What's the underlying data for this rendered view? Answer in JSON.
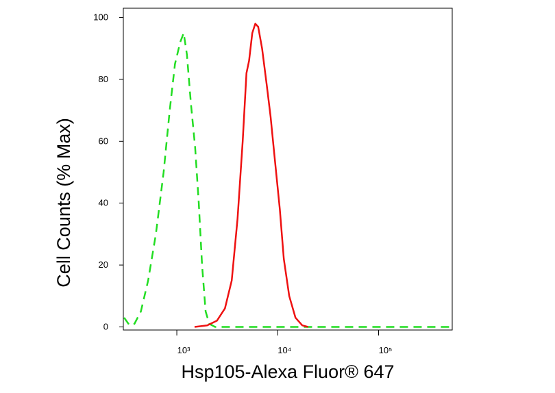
{
  "chart_data": {
    "type": "line",
    "xlabel": "Hsp105-Alexa Fluor® 647",
    "ylabel": "Cell Counts (% Max)",
    "xscale": "log",
    "xlim": [
      295,
      537000
    ],
    "ylim": [
      -1,
      103
    ],
    "xticks": [
      {
        "value": 1000,
        "label": "10³"
      },
      {
        "value": 10000,
        "label": "10⁴"
      },
      {
        "value": 100000,
        "label": "10⁵"
      }
    ],
    "yticks": [
      0,
      20,
      40,
      60,
      80,
      100
    ],
    "series": [
      {
        "color": "#22dd22",
        "dash": true,
        "x": [
          300,
          340,
          380,
          440,
          520,
          620,
          740,
          850,
          960,
          1080,
          1170,
          1260,
          1380,
          1520,
          1650,
          1780,
          1930,
          2100,
          2400,
          500000
        ],
        "values": [
          3,
          0.5,
          1,
          5,
          15,
          30,
          50,
          70,
          85,
          92,
          95,
          88,
          72,
          58,
          40,
          20,
          5,
          1,
          0,
          0
        ]
      },
      {
        "color": "#ee1111",
        "dash": false,
        "x": [
          1500,
          2000,
          2500,
          3000,
          3500,
          4000,
          4500,
          4900,
          5200,
          5600,
          6000,
          6400,
          7000,
          7800,
          8500,
          9300,
          10500,
          11500,
          13000,
          15000,
          17500,
          20000
        ],
        "values": [
          0,
          0.5,
          2,
          6,
          15,
          35,
          60,
          82,
          86,
          95,
          98,
          97,
          90,
          78,
          68,
          55,
          38,
          22,
          10,
          3,
          0.5,
          0
        ]
      }
    ]
  }
}
